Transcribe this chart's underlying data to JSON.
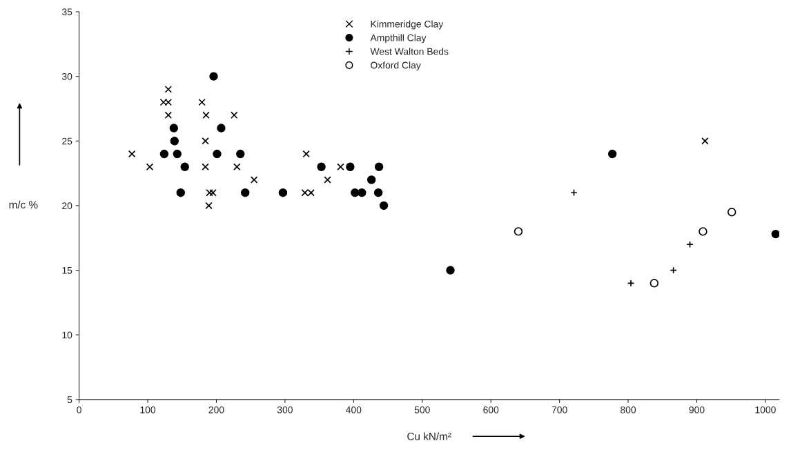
{
  "chart_data": {
    "type": "scatter",
    "xlabel": "Cu kN/m²",
    "ylabel": "m/c %",
    "xlim": [
      0,
      1020
    ],
    "ylim": [
      5,
      35
    ],
    "xticks": [
      0,
      100,
      200,
      300,
      400,
      500,
      600,
      700,
      800,
      900,
      1000
    ],
    "yticks": [
      5,
      10,
      15,
      20,
      25,
      30,
      35
    ],
    "grid": false,
    "legend": "top",
    "series": [
      {
        "name": "Kimmeridge Clay",
        "color": "#000000",
        "marker": "cross",
        "x": [
          77,
          103,
          123,
          130,
          130,
          130,
          179,
          185,
          184,
          184,
          226,
          230,
          255,
          190,
          195,
          189,
          331,
          329,
          338,
          381,
          362,
          912
        ],
        "values": [
          24,
          23,
          28,
          28,
          29,
          27,
          28,
          27,
          25,
          23,
          27,
          23,
          22,
          21,
          21,
          20,
          24,
          21,
          21,
          23,
          22,
          25
        ]
      },
      {
        "name": "Ampthill Clay",
        "color": "#000000",
        "marker": "circle",
        "x": [
          124,
          138,
          139,
          143,
          148,
          154,
          196,
          201,
          207,
          235,
          242,
          297,
          353,
          395,
          402,
          412,
          426,
          436,
          437,
          444,
          541,
          777,
          1015
        ],
        "values": [
          24,
          26,
          25,
          24,
          21,
          23,
          30,
          24,
          26,
          24,
          21,
          21,
          23,
          23,
          21,
          21,
          22,
          21,
          23,
          20,
          15,
          24,
          17.8
        ]
      },
      {
        "name": "West Walton Beds",
        "color": "#000000",
        "marker": "plus",
        "x": [
          721,
          804,
          866,
          890
        ],
        "values": [
          21,
          14,
          15,
          17
        ]
      },
      {
        "name": "Oxford Clay",
        "color": "#000000",
        "marker": "circle-open",
        "x": [
          640,
          838,
          909,
          951
        ],
        "values": [
          18,
          14,
          18,
          19.5
        ]
      }
    ]
  }
}
